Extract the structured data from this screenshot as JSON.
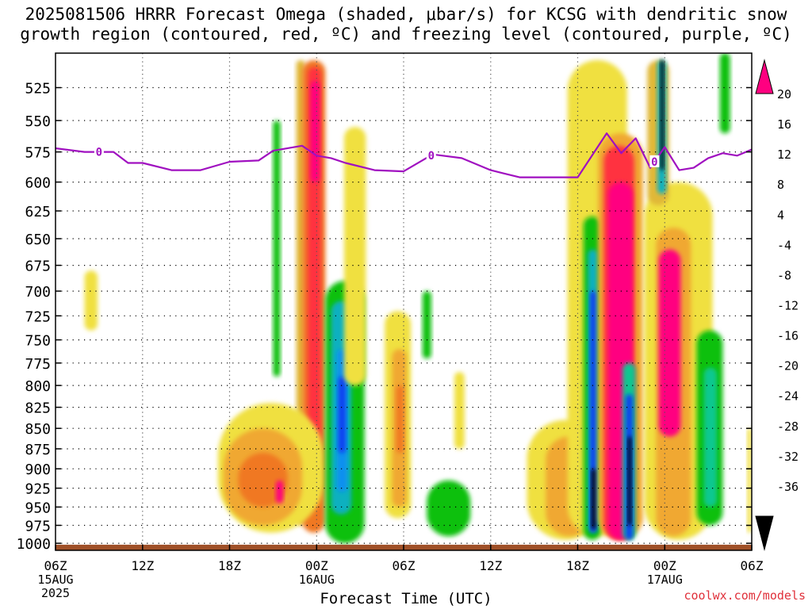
{
  "title": {
    "line1": "2025081506 HRRR Forecast Omega (shaded, μbar/s) for KCSG with dendritic snow",
    "line2": "growth region (contoured, red, ºC) and freezing level (contoured, purple, ºC)"
  },
  "watermark": "coolwx.com/models",
  "chart_data": {
    "type": "heatmap",
    "xlabel": "Forecast Time (UTC)",
    "x_ticks": [
      {
        "label": "06Z",
        "sub1": "15AUG",
        "sub2": "2025",
        "hour": 0
      },
      {
        "label": "12Z",
        "sub1": "",
        "sub2": "",
        "hour": 6
      },
      {
        "label": "18Z",
        "sub1": "",
        "sub2": "",
        "hour": 12
      },
      {
        "label": "00Z",
        "sub1": "16AUG",
        "sub2": "",
        "hour": 18
      },
      {
        "label": "06Z",
        "sub1": "",
        "sub2": "",
        "hour": 24
      },
      {
        "label": "12Z",
        "sub1": "",
        "sub2": "",
        "hour": 30
      },
      {
        "label": "18Z",
        "sub1": "",
        "sub2": "",
        "hour": 36
      },
      {
        "label": "00Z",
        "sub1": "17AUG",
        "sub2": "",
        "hour": 42
      },
      {
        "label": "06Z",
        "sub1": "",
        "sub2": "",
        "hour": 48
      }
    ],
    "xlim": [
      0,
      48
    ],
    "y_ticks": [
      "525",
      "550",
      "575",
      "600",
      "625",
      "650",
      "675",
      "700",
      "725",
      "750",
      "775",
      "800",
      "825",
      "850",
      "875",
      "900",
      "925",
      "950",
      "975",
      "1000"
    ],
    "ylim": [
      1010,
      500
    ],
    "y_scale": "log-pressure",
    "grid": true,
    "colorbar": {
      "labels": [
        "20",
        "16",
        "12",
        "8",
        "4",
        "-4",
        "-8",
        "-12",
        "-16",
        "-20",
        "-24",
        "-28",
        "-32",
        "-36"
      ],
      "colors_top_to_bottom": [
        "#ff0080",
        "#ff3040",
        "#f07820",
        "#f0a830",
        "#e0b838",
        "#f0e040",
        "#ffffff",
        "#10c010",
        "#10c890",
        "#10b0c0",
        "#1090f0",
        "#1040f0",
        "#6010d0",
        "#9010c0",
        "#a0a0a0",
        "#000000"
      ]
    },
    "freezing_level": {
      "color": "#a010c0",
      "label": "0",
      "label_hours": [
        3.0,
        25.9,
        41.3
      ],
      "hours": [
        0,
        2,
        4,
        5,
        6,
        8,
        10,
        12,
        14,
        15,
        17,
        18,
        19,
        20,
        22,
        24,
        26,
        28,
        30,
        32,
        34,
        36,
        38,
        39,
        40,
        41,
        42,
        43,
        44,
        45,
        46,
        47,
        48
      ],
      "pressure": [
        572,
        575,
        575,
        584,
        584,
        590,
        590,
        583,
        582,
        574,
        570,
        578,
        580,
        584,
        590,
        591,
        577,
        580,
        590,
        596,
        596,
        596,
        560,
        576,
        564,
        588,
        571,
        590,
        588,
        580,
        576,
        578,
        573
      ]
    },
    "omega_features": [
      {
        "h0": 16.6,
        "h1": 17.2,
        "p0": 505,
        "p1": 975,
        "v": 8
      },
      {
        "h0": 17.0,
        "h1": 18.6,
        "p0": 505,
        "p1": 985,
        "v": 12
      },
      {
        "h0": 17.4,
        "h1": 18.3,
        "p0": 510,
        "p1": 900,
        "v": 16
      },
      {
        "h0": 17.6,
        "h1": 18.2,
        "p0": 520,
        "p1": 600,
        "v": 20
      },
      {
        "h0": 15.0,
        "h1": 15.5,
        "p0": 550,
        "p1": 790,
        "v": -6
      },
      {
        "h0": 11.2,
        "h1": 18.5,
        "p0": 820,
        "p1": 985,
        "v": 6
      },
      {
        "h0": 11.6,
        "h1": 17.0,
        "p0": 850,
        "p1": 975,
        "v": 10
      },
      {
        "h0": 12.6,
        "h1": 16.0,
        "p0": 880,
        "p1": 950,
        "v": 14
      },
      {
        "h0": 15.2,
        "h1": 15.7,
        "p0": 915,
        "p1": 945,
        "v": 20
      },
      {
        "h0": 2.0,
        "h1": 2.9,
        "p0": 680,
        "p1": 740,
        "v": 6
      },
      {
        "h0": 18.6,
        "h1": 21.3,
        "p0": 690,
        "p1": 1000,
        "v": -6
      },
      {
        "h0": 19.0,
        "h1": 20.4,
        "p0": 710,
        "p1": 960,
        "v": -12
      },
      {
        "h0": 19.4,
        "h1": 20.1,
        "p0": 760,
        "p1": 930,
        "v": -18
      },
      {
        "h0": 19.5,
        "h1": 20.0,
        "p0": 790,
        "p1": 880,
        "v": -22
      },
      {
        "h0": 19.9,
        "h1": 21.4,
        "p0": 555,
        "p1": 800,
        "v": 6
      },
      {
        "h0": 22.7,
        "h1": 24.5,
        "p0": 720,
        "p1": 965,
        "v": 6
      },
      {
        "h0": 23.2,
        "h1": 24.2,
        "p0": 760,
        "p1": 950,
        "v": 10
      },
      {
        "h0": 23.5,
        "h1": 24.0,
        "p0": 800,
        "p1": 880,
        "v": 14
      },
      {
        "h0": 27.5,
        "h1": 28.2,
        "p0": 785,
        "p1": 875,
        "v": 6
      },
      {
        "h0": 25.3,
        "h1": 25.9,
        "p0": 700,
        "p1": 770,
        "v": -6
      },
      {
        "h0": 25.6,
        "h1": 28.6,
        "p0": 915,
        "p1": 990,
        "v": -6
      },
      {
        "h0": 32.5,
        "h1": 37.8,
        "p0": 840,
        "p1": 995,
        "v": 6
      },
      {
        "h0": 33.8,
        "h1": 37.0,
        "p0": 860,
        "p1": 990,
        "v": 10
      },
      {
        "h0": 35.3,
        "h1": 39.4,
        "p0": 505,
        "p1": 990,
        "v": 6
      },
      {
        "h0": 36.4,
        "h1": 37.6,
        "p0": 630,
        "p1": 995,
        "v": -6
      },
      {
        "h0": 36.7,
        "h1": 37.4,
        "p0": 660,
        "p1": 985,
        "v": -12
      },
      {
        "h0": 36.85,
        "h1": 37.3,
        "p0": 700,
        "p1": 985,
        "v": -20
      },
      {
        "h0": 36.95,
        "h1": 37.25,
        "p0": 900,
        "p1": 980,
        "v": -36
      },
      {
        "h0": 37.4,
        "h1": 40.5,
        "p0": 560,
        "p1": 995,
        "v": 10
      },
      {
        "h0": 37.8,
        "h1": 39.9,
        "p0": 570,
        "p1": 995,
        "v": 16
      },
      {
        "h0": 38.1,
        "h1": 39.8,
        "p0": 600,
        "p1": 995,
        "v": 20
      },
      {
        "h0": 39.1,
        "h1": 40.0,
        "p0": 775,
        "p1": 995,
        "v": -8
      },
      {
        "h0": 39.3,
        "h1": 39.8,
        "p0": 810,
        "p1": 995,
        "v": -20
      },
      {
        "h0": 39.45,
        "h1": 39.7,
        "p0": 860,
        "p1": 975,
        "v": -36
      },
      {
        "h0": 40.6,
        "h1": 45.3,
        "p0": 600,
        "p1": 995,
        "v": 6
      },
      {
        "h0": 41.4,
        "h1": 43.8,
        "p0": 640,
        "p1": 990,
        "v": 10
      },
      {
        "h0": 41.6,
        "h1": 43.1,
        "p0": 660,
        "p1": 860,
        "v": 20
      },
      {
        "h0": 40.8,
        "h1": 42.3,
        "p0": 505,
        "p1": 620,
        "v": 8
      },
      {
        "h0": 41.5,
        "h1": 42.1,
        "p0": 505,
        "p1": 610,
        "v": -12
      },
      {
        "h0": 41.7,
        "h1": 41.95,
        "p0": 505,
        "p1": 590,
        "v": -36
      },
      {
        "h0": 44.2,
        "h1": 46.0,
        "p0": 740,
        "p1": 975,
        "v": -6
      },
      {
        "h0": 44.7,
        "h1": 45.6,
        "p0": 780,
        "p1": 950,
        "v": -10
      },
      {
        "h0": 45.8,
        "h1": 46.5,
        "p0": 500,
        "p1": 560,
        "v": -6
      },
      {
        "h0": 47.7,
        "h1": 48.0,
        "p0": 850,
        "p1": 985,
        "v": 6
      }
    ],
    "ground": {
      "color": "#a05028",
      "p0": 1002,
      "p1": 1008
    }
  }
}
